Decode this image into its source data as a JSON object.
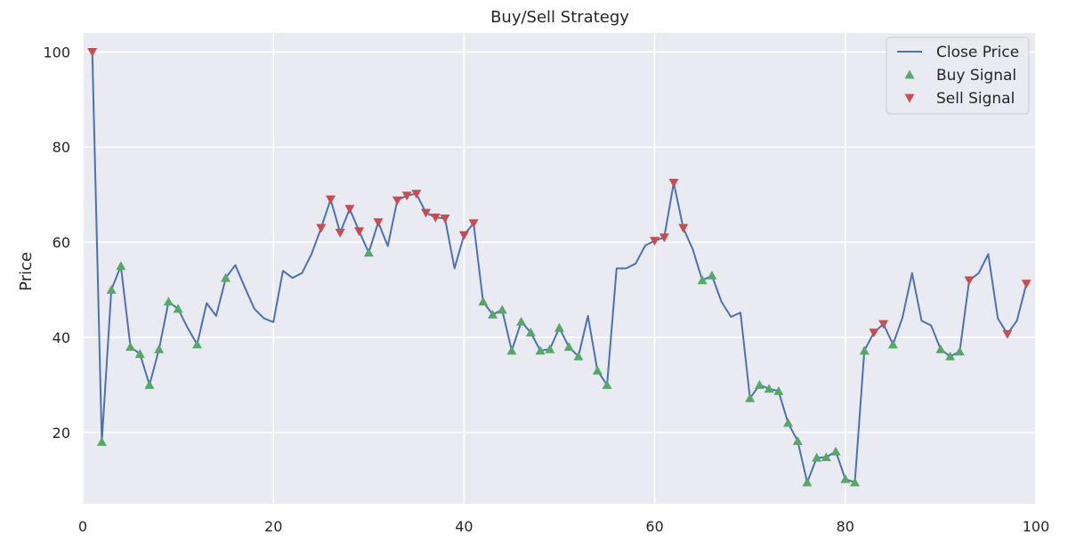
{
  "chart_data": {
    "type": "line",
    "title": "Buy/Sell Strategy",
    "xlabel": "",
    "ylabel": "Price",
    "xlim": [
      0,
      100
    ],
    "ylim": [
      5,
      104
    ],
    "xticks": [
      0,
      20,
      40,
      60,
      80,
      100
    ],
    "yticks": [
      20,
      40,
      60,
      80,
      100
    ],
    "grid": true,
    "legend_position": "top-right",
    "colors": {
      "background": "#eaeaf2",
      "grid": "#ffffff",
      "line": "#4c72b0",
      "buy": "#55a868",
      "sell": "#c44e52"
    },
    "series": [
      {
        "name": "Close Price",
        "x": [
          1,
          2,
          3,
          4,
          5,
          6,
          7,
          8,
          9,
          10,
          11,
          12,
          13,
          14,
          15,
          16,
          17,
          18,
          19,
          20,
          21,
          22,
          23,
          24,
          25,
          26,
          27,
          28,
          29,
          30,
          31,
          32,
          33,
          34,
          35,
          36,
          37,
          38,
          39,
          40,
          41,
          42,
          43,
          44,
          45,
          46,
          47,
          48,
          49,
          50,
          51,
          52,
          53,
          54,
          55,
          56,
          57,
          58,
          59,
          60,
          61,
          62,
          63,
          64,
          65,
          66,
          67,
          68,
          69,
          70,
          71,
          72,
          73,
          74,
          75,
          76,
          77,
          78,
          79,
          80,
          81,
          82,
          83,
          84,
          85,
          86,
          87,
          88,
          89,
          90,
          91,
          92,
          93,
          94,
          95,
          96,
          97,
          98,
          99
        ],
        "y": [
          100,
          18,
          50,
          55,
          38,
          36.5,
          30,
          37.5,
          47.5,
          46,
          42,
          38.5,
          47.2,
          44.5,
          52.5,
          55.2,
          50.5,
          46,
          44,
          43.2,
          54,
          52.5,
          53.5,
          57.5,
          63,
          69,
          62,
          67,
          62.3,
          57.8,
          64.2,
          59.2,
          68.8,
          69.8,
          70.2,
          66.2,
          65.2,
          65,
          54.5,
          61.5,
          64,
          47.5,
          44.8,
          45.8,
          37.2,
          43.3,
          41,
          37.2,
          37.5,
          42,
          38,
          36,
          44.5,
          33,
          30,
          54.5,
          54.5,
          55.5,
          59.3,
          60.3,
          61,
          72.5,
          63,
          58.5,
          52,
          53,
          47.5,
          44.3,
          45.2,
          27.2,
          30,
          29.2,
          28.7,
          22,
          18.2,
          9.5,
          14.7,
          14.8,
          16,
          10.2,
          9.5,
          37.2,
          41,
          42.8,
          38.5,
          44.2,
          53.5,
          43.5,
          42.5,
          37.5,
          36,
          37,
          52,
          53.5,
          57.5,
          44,
          40.7,
          43.5,
          51.3
        ]
      },
      {
        "name": "Buy Signal",
        "x": [
          2,
          3,
          4,
          5,
          6,
          7,
          8,
          9,
          10,
          12,
          15,
          30,
          42,
          43,
          44,
          45,
          46,
          47,
          48,
          49,
          50,
          51,
          52,
          54,
          55,
          65,
          66,
          70,
          71,
          72,
          73,
          74,
          75,
          76,
          77,
          78,
          79,
          80,
          81,
          82,
          85,
          90,
          91,
          92
        ],
        "y": [
          18,
          50,
          55,
          38,
          36.5,
          30,
          37.5,
          47.5,
          46,
          38.5,
          52.5,
          57.8,
          47.5,
          44.8,
          45.8,
          37.2,
          43.3,
          41,
          37.2,
          37.5,
          42,
          38,
          36,
          33,
          30,
          52,
          53,
          27.2,
          30,
          29.2,
          28.7,
          22,
          18.2,
          9.5,
          14.7,
          14.8,
          16,
          10.2,
          9.5,
          37.2,
          38.5,
          37.5,
          36,
          37
        ]
      },
      {
        "name": "Sell Signal",
        "x": [
          1,
          25,
          26,
          27,
          28,
          29,
          31,
          33,
          34,
          35,
          36,
          37,
          38,
          40,
          41,
          60,
          61,
          62,
          63,
          83,
          84,
          93,
          97,
          99
        ],
        "y": [
          100,
          63,
          69,
          62,
          67,
          62.3,
          64.2,
          68.8,
          69.8,
          70.2,
          66.2,
          65.2,
          65,
          61.5,
          64,
          60.3,
          61,
          72.5,
          63,
          41,
          42.8,
          52,
          40.7,
          51.3
        ]
      }
    ]
  }
}
